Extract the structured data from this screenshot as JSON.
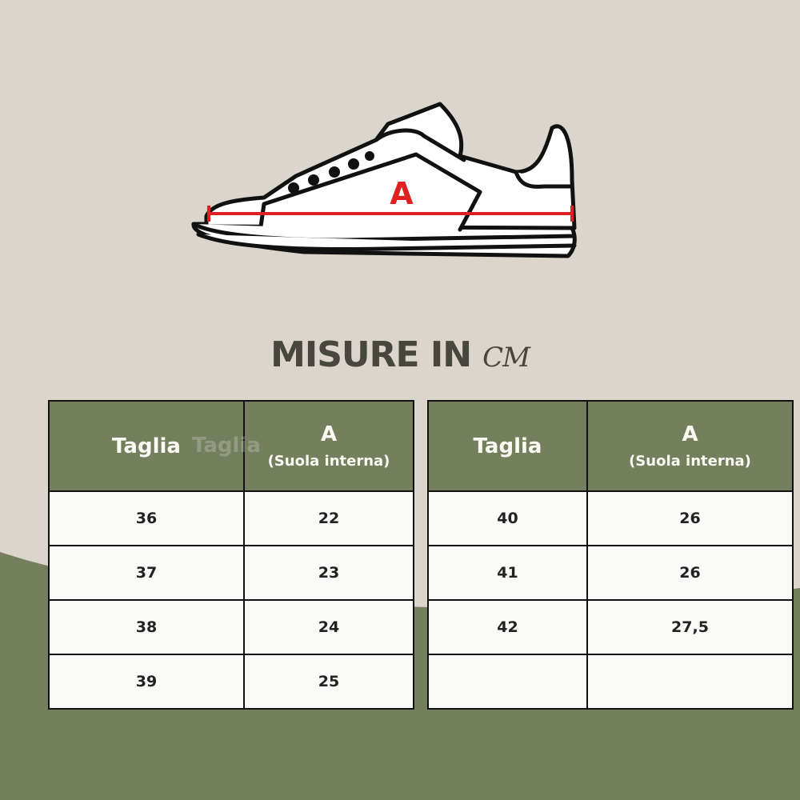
{
  "diagram": {
    "measure_label": "A"
  },
  "title": {
    "text": "MISURE IN",
    "unit": "CM"
  },
  "colors": {
    "background": "#dbd5cb",
    "accent_green": "#747f5e",
    "measure_line": "#e0211f",
    "title_text": "#47463f"
  },
  "tables": [
    {
      "headers": {
        "size": "Taglia",
        "ghost": "Taglia",
        "measure": "A",
        "measure_sub": "(Suola interna)"
      },
      "rows": [
        [
          "36",
          "22"
        ],
        [
          "37",
          "23"
        ],
        [
          "38",
          "24"
        ],
        [
          "39",
          "25"
        ]
      ]
    },
    {
      "headers": {
        "size": "Taglia",
        "measure": "A",
        "measure_sub": "(Suola interna)"
      },
      "rows": [
        [
          "40",
          "26"
        ],
        [
          "41",
          "26"
        ],
        [
          "42",
          "27,5"
        ],
        [
          "",
          ""
        ]
      ]
    }
  ]
}
